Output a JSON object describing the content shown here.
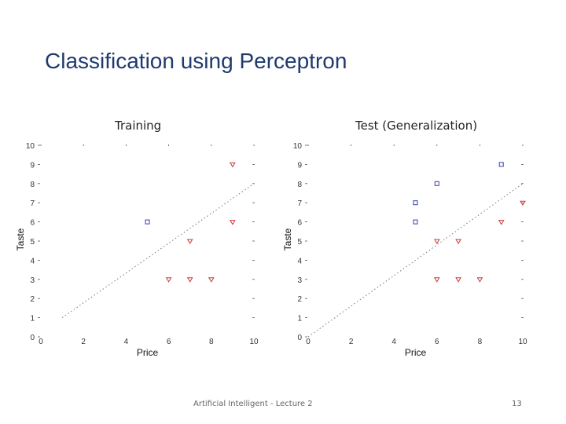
{
  "slide": {
    "title": "Classification using Perceptron",
    "footer": "Artificial Intelligent - Lecture 2",
    "page_number": "13"
  },
  "colors": {
    "title": "#1f3a6e",
    "class_a": "#3340b0",
    "class_b": "#c83838",
    "ticks": "#555555",
    "boundary": "#777777"
  },
  "chart_data": [
    {
      "type": "scatter",
      "title": "Training",
      "xlabel": "Price",
      "ylabel": "Taste",
      "xlim": [
        0,
        10
      ],
      "ylim": [
        0,
        10
      ],
      "xticks": [
        "0",
        "2",
        "4",
        "6",
        "8",
        "10"
      ],
      "yticks": [
        "0",
        "1",
        "2",
        "3",
        "4",
        "5",
        "6",
        "7",
        "8",
        "9",
        "10"
      ],
      "grid": false,
      "series": [
        {
          "marker": "square",
          "color": "#3340b0",
          "points": [
            [
              5,
              6
            ]
          ]
        },
        {
          "marker": "triangle",
          "color": "#c83838",
          "points": [
            [
              9,
              9
            ],
            [
              9,
              6
            ],
            [
              7,
              5
            ],
            [
              6,
              3
            ],
            [
              7,
              3
            ],
            [
              8,
              3
            ]
          ]
        }
      ],
      "boundary": {
        "from": [
          1,
          1
        ],
        "to": [
          10,
          8
        ]
      }
    },
    {
      "type": "scatter",
      "title": "Test (Generalization)",
      "xlabel": "Price",
      "ylabel": "Taste",
      "xlim": [
        0,
        10
      ],
      "ylim": [
        0,
        10
      ],
      "xticks": [
        "0",
        "2",
        "4",
        "6",
        "8",
        "10"
      ],
      "yticks": [
        "0",
        "1",
        "2",
        "3",
        "4",
        "5",
        "6",
        "7",
        "8",
        "9",
        "10"
      ],
      "grid": false,
      "series": [
        {
          "marker": "square",
          "color": "#3340b0",
          "points": [
            [
              5,
              7
            ],
            [
              5,
              6
            ],
            [
              6,
              8
            ],
            [
              9,
              9
            ]
          ]
        },
        {
          "marker": "triangle",
          "color": "#c83838",
          "points": [
            [
              10,
              7
            ],
            [
              9,
              6
            ],
            [
              7,
              5
            ],
            [
              6,
              5
            ],
            [
              6,
              3
            ],
            [
              7,
              3
            ],
            [
              8,
              3
            ]
          ]
        }
      ],
      "boundary": {
        "from": [
          0,
          0
        ],
        "to": [
          10,
          8
        ]
      }
    }
  ]
}
